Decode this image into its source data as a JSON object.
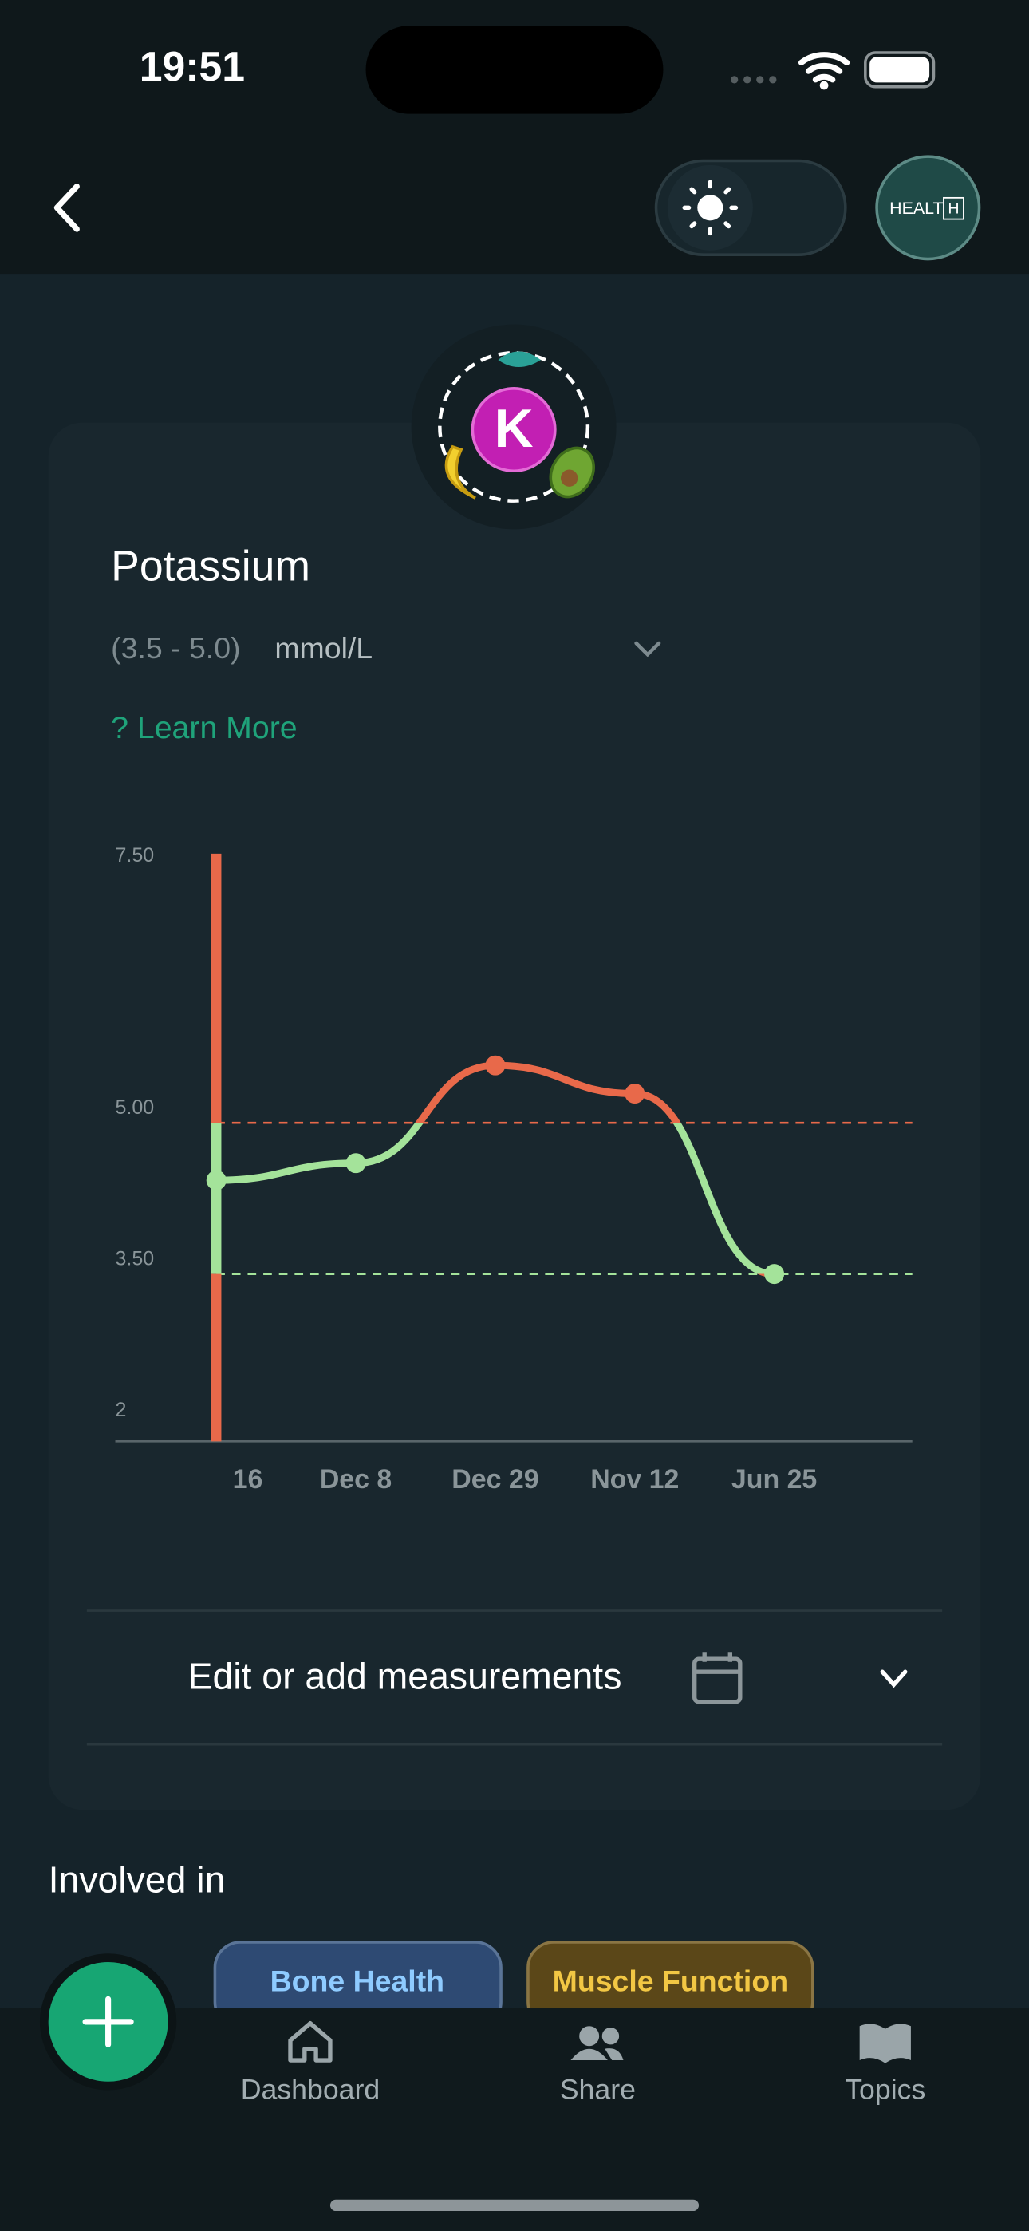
{
  "status_bar": {
    "time": "19:51"
  },
  "header": {
    "logo_text": "HEALT",
    "logo_mark": "H"
  },
  "biomarker": {
    "symbol": "K",
    "name": "Potassium",
    "range_label": "(3.5 - 5.0)",
    "unit": "mmol/L",
    "learn_more": "? Learn More"
  },
  "chart_data": {
    "type": "line",
    "categories": [
      "16",
      "Dec 8",
      "Dec 29",
      "Nov 12",
      "Jun 25"
    ],
    "series": [
      {
        "values": [
          4.43,
          4.6,
          5.57,
          5.29,
          3.5
        ]
      }
    ],
    "ylim": [
      1.84,
      7.67
    ],
    "yticks": [
      {
        "value": 7.5,
        "label": "7.50"
      },
      {
        "value": 5,
        "label": "5.00"
      },
      {
        "value": 3.5,
        "label": "3.50"
      },
      2
    ],
    "reference_range": [
      3.5,
      5.0
    ],
    "in_range_color": "#a4e39a",
    "out_of_range_color": "#e8694a"
  },
  "measurements": {
    "label": "Edit or add measurements"
  },
  "involved_in": {
    "title": "Involved in",
    "topics": [
      "Bone Health",
      "Muscle Function"
    ]
  },
  "nav": {
    "items": [
      "Dashboard",
      "Share",
      "Topics"
    ]
  }
}
